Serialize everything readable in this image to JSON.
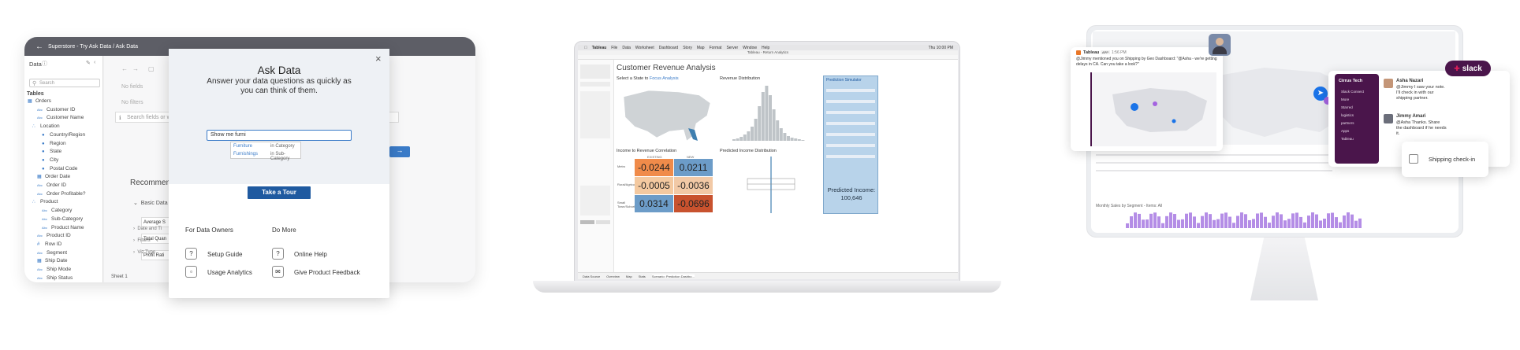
{
  "ask_data": {
    "breadcrumb": "Superstore - Try Ask Data / Ask Data",
    "data_pane_title": "Data",
    "search_placeholder": "Search",
    "tables_label": "Tables",
    "tree": [
      {
        "label": "Orders",
        "icon": "table-icon",
        "indent": 0
      },
      {
        "label": "Customer ID",
        "icon": "abc-icon",
        "indent": 2
      },
      {
        "label": "Customer Name",
        "icon": "abc-icon",
        "indent": 2
      },
      {
        "label": "Location",
        "icon": "hierarchy-icon",
        "indent": 1
      },
      {
        "label": "Country/Region",
        "icon": "globe-icon",
        "indent": 3
      },
      {
        "label": "Region",
        "icon": "globe-icon",
        "indent": 3
      },
      {
        "label": "State",
        "icon": "globe-icon",
        "indent": 3
      },
      {
        "label": "City",
        "icon": "globe-icon",
        "indent": 3
      },
      {
        "label": "Postal Code",
        "icon": "globe-icon",
        "indent": 3
      },
      {
        "label": "Order Date",
        "icon": "calendar-icon",
        "indent": 2
      },
      {
        "label": "Order ID",
        "icon": "abc-icon",
        "indent": 2
      },
      {
        "label": "Order Profitable?",
        "icon": "abc-icon",
        "indent": 2
      },
      {
        "label": "Product",
        "icon": "hierarchy-icon",
        "indent": 1
      },
      {
        "label": "Category",
        "icon": "abc-icon",
        "indent": 3
      },
      {
        "label": "Sub-Category",
        "icon": "abc-icon",
        "indent": 3
      },
      {
        "label": "Product Name",
        "icon": "abc-icon",
        "indent": 3
      },
      {
        "label": "Product ID",
        "icon": "abc-icon",
        "indent": 2
      },
      {
        "label": "Row ID",
        "icon": "number-icon",
        "indent": 2
      },
      {
        "label": "Segment",
        "icon": "abc-icon",
        "indent": 2
      },
      {
        "label": "Ship Date",
        "icon": "calendar-icon",
        "indent": 2
      },
      {
        "label": "Ship Mode",
        "icon": "abc-icon",
        "indent": 2
      },
      {
        "label": "Ship Status",
        "icon": "abc-icon",
        "indent": 2
      }
    ],
    "no_fields": "No fields",
    "no_filters": "No filters",
    "search_fields_placeholder": "Search fields or w",
    "recommended": "Recommen",
    "basic_data": "Basic Data",
    "rec_items": [
      "Average S",
      "Total Quan",
      "Profit Rati"
    ],
    "date_tree": "Date and Ti",
    "filters": "Filters",
    "viz_type": "Viz Type",
    "sheet_tab": "Sheet 1",
    "modal": {
      "title": "Ask Data",
      "subtitle": "Answer your data questions as quickly as you can think of them.",
      "query_value": "Show me furni",
      "suggestions": [
        {
          "value": "Furniture",
          "type": "in Category"
        },
        {
          "value": "Furnishings",
          "type": "in Sub-Category"
        }
      ],
      "tour_button": "Take a Tour",
      "col1_heading": "For Data Owners",
      "col2_heading": "Do More",
      "links": [
        "Setup Guide",
        "Usage Analytics",
        "Online Help",
        "Give Product Feedback"
      ]
    }
  },
  "dashboard": {
    "menu": [
      "Tableau",
      "File",
      "Data",
      "Worksheet",
      "Dashboard",
      "Story",
      "Map",
      "Format",
      "Server",
      "Window",
      "Help"
    ],
    "clock": "Thu 10:00 PM",
    "window_title": "Tableau - Return Analytics",
    "title": "Customer Revenue Analysis",
    "map_title": "Select a State to",
    "map_title_link": "Focus Analysis",
    "dist_title": "Revenue Distribution",
    "corr_title": "Income to Revenue Correlation",
    "pred_dist_title": "Predicted Income Distribution",
    "sim_title": "Prediction Simulator",
    "sim_result_label": "Predicted Income:",
    "sim_result_value": "100,646",
    "heat_cols": [
      "EXISTING",
      "NEW"
    ],
    "heat_rows": [
      "Metro",
      "Rural/Agricultural",
      "Small Town/Suburban"
    ],
    "heat_values": [
      [
        "-0.0244",
        "0.0211"
      ],
      [
        "-0.0005",
        "-0.0036"
      ],
      [
        "0.0314",
        "-0.0696"
      ]
    ],
    "heat_colors": [
      [
        "#f08b4a",
        "#6c9cc8"
      ],
      [
        "#f4c9a0",
        "#f2c9a6"
      ],
      [
        "#6c9cc8",
        "#c8522e"
      ]
    ],
    "bottom_tabs": [
      "Data Source",
      "Overview",
      "Map",
      "Stats",
      "Scenario: Prediction Dashbo..."
    ]
  },
  "slack": {
    "app": "Tableau",
    "app_badge": "APP",
    "time": "1:56 PM",
    "mention_text": "@Jimmy mentioned you on Shipping by Geo Dashboard: \"@Asha - we're getting delays in CA. Can you take a look?\"",
    "workspace": "Cirrus Tech",
    "channels": [
      "Slack Connect",
      "More",
      "Starred",
      "logistics",
      "partners",
      "Apps",
      "Tableau"
    ],
    "brand": "slack",
    "msg1_name": "Asha Nazari",
    "msg1_text": "@Jimmy I saw your note. I'll check in with our shipping partner.",
    "msg2_name": "Jimmy Amari",
    "msg2_text": "@Asha Thanks. Share the dashboard if he needs it.",
    "checkin_label": "Shipping check-in",
    "chart_label": "Monthly Sales by Segment - Items: All",
    "colors": {
      "slack_purple": "#4a154b",
      "tableau_purple": "#6b3fa0"
    }
  }
}
